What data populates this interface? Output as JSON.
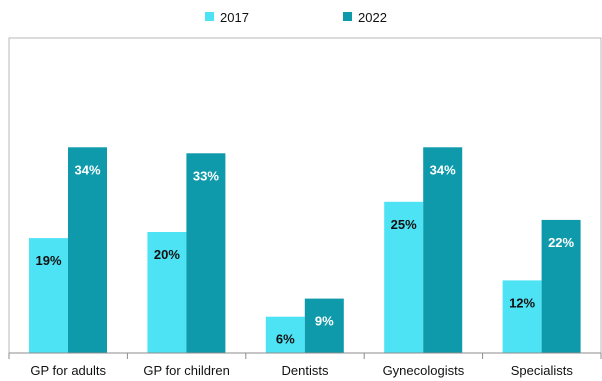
{
  "chart_data": {
    "type": "bar",
    "categories": [
      "GP for adults",
      "GP for children",
      "Dentists",
      "Gynecologists",
      "Specialists"
    ],
    "series": [
      {
        "name": "2017",
        "values": [
          19,
          20,
          6,
          25,
          12
        ],
        "labels": [
          "19%",
          "20%",
          "6%",
          "25%",
          "12%"
        ],
        "color": "#4de3f5",
        "label_color": "#111111"
      },
      {
        "name": "2022",
        "values": [
          34,
          33,
          9,
          34,
          22
        ],
        "labels": [
          "34%",
          "33%",
          "9%",
          "34%",
          "22%"
        ],
        "color": "#0e9aaa",
        "label_color": "#ffffff"
      }
    ],
    "ylim": [
      0,
      38
    ],
    "grid": false,
    "legend_position": "top-center",
    "title": "",
    "xlabel": "",
    "ylabel": ""
  }
}
